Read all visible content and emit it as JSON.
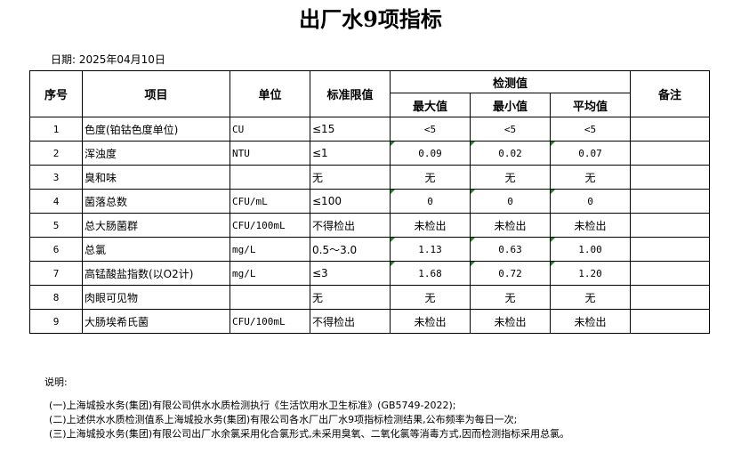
{
  "title": "出厂水9项指标",
  "date": "日期: 2025年04月10日",
  "headers": {
    "seq": "序号",
    "item": "项目",
    "unit": "单位",
    "limit": "标准限值",
    "detected": "检测值",
    "max": "最大值",
    "min": "最小值",
    "avg": "平均值",
    "remark": "备注"
  },
  "rows": [
    {
      "seq": "1",
      "item": "色度(铂钴色度单位)",
      "unit": "CU",
      "limit": "≤15",
      "max": "<5",
      "min": "<5",
      "avg": "<5",
      "flag": false
    },
    {
      "seq": "2",
      "item": "浑浊度",
      "unit": "NTU",
      "limit": "≤1",
      "max": "0.09",
      "min": "0.02",
      "avg": "0.07",
      "flag": true
    },
    {
      "seq": "3",
      "item": "臭和味",
      "unit": "",
      "limit": "无",
      "max": "无",
      "min": "无",
      "avg": "无",
      "flag": false
    },
    {
      "seq": "4",
      "item": "菌落总数",
      "unit": "CFU/mL",
      "limit": "≤100",
      "max": "0",
      "min": "0",
      "avg": "0",
      "flag": true
    },
    {
      "seq": "5",
      "item": "总大肠菌群",
      "unit": "CFU/100mL",
      "limit": "不得检出",
      "max": "未检出",
      "min": "未检出",
      "avg": "未检出",
      "flag": false
    },
    {
      "seq": "6",
      "item": "总氯",
      "unit": "mg/L",
      "limit": "0.5～3.0",
      "max": "1.13",
      "min": "0.63",
      "avg": "1.00",
      "flag": true
    },
    {
      "seq": "7",
      "item": "高锰酸盐指数(以O2计)",
      "unit": "mg/L",
      "limit": "≤3",
      "max": "1.68",
      "min": "0.72",
      "avg": "1.20",
      "flag": true
    },
    {
      "seq": "8",
      "item": "肉眼可见物",
      "unit": "",
      "limit": "无",
      "max": "无",
      "min": "无",
      "avg": "无",
      "flag": false
    },
    {
      "seq": "9",
      "item": "大肠埃希氏菌",
      "unit": "CFU/100mL",
      "limit": "不得检出",
      "max": "未检出",
      "min": "未检出",
      "avg": "未检出",
      "flag": false
    }
  ],
  "notes": {
    "label": "说明:",
    "items": [
      "(一)上海城投水务(集团)有限公司供水水质检测执行《生活饮用水卫生标准》(GB5749-2022);",
      "(二)上述供水水质检测值系上海城投水务(集团)有限公司各水厂出厂水9项指标检测结果,公布频率为每日一次;",
      "(三)上海城投水务(集团)有限公司出厂水余氯采用化合氯形式,未采用臭氧、二氧化氯等消毒方式,因而检测指标采用总氯。"
    ]
  }
}
